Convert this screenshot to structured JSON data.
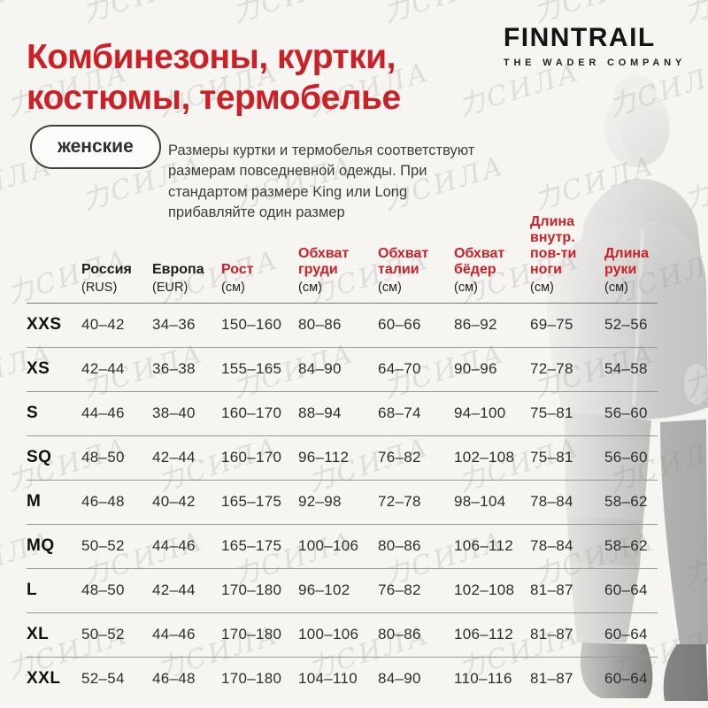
{
  "header": {
    "title_line1": "Комбинезоны, куртки,",
    "title_line2": "костюмы, термобелье",
    "badge_label": "женские",
    "note": "Размеры куртки и термобелья соответствуют размерам повседневной одежды. При стандартом размере King или Long прибавляйте один размер"
  },
  "brand": {
    "logo": "FINNTRAIL",
    "tagline": "THE WADER COMPANY"
  },
  "watermark": {
    "text": "力СИЛА"
  },
  "colors": {
    "accent_red": "#cb2026",
    "text_dark": "#1c1c1c",
    "separator_gray": "#979797",
    "watermark_gray": "#87837b",
    "background": "#f6f5f2"
  },
  "table": {
    "columns": [
      {
        "label": "",
        "unit": "",
        "red": false
      },
      {
        "label": "Россия",
        "unit": "(RUS)",
        "red": false
      },
      {
        "label": "Европа",
        "unit": "(EUR)",
        "red": false
      },
      {
        "label": "Рост",
        "unit": "(см)",
        "red": true
      },
      {
        "label": "Обхват груди",
        "unit": "(см)",
        "red": true
      },
      {
        "label": "Обхват талии",
        "unit": "(см)",
        "red": true
      },
      {
        "label": "Обхват бёдер",
        "unit": "(см)",
        "red": true
      },
      {
        "label": "Длина внутр. пов-ти ноги",
        "unit": "(см)",
        "red": true
      },
      {
        "label": "Длина руки",
        "unit": "(см)",
        "red": true
      }
    ],
    "rows": [
      {
        "size": "XXS",
        "values": [
          "40–42",
          "34–36",
          "150–160",
          "80–86",
          "60–66",
          "86–92",
          "69–75",
          "52–56"
        ]
      },
      {
        "size": "XS",
        "values": [
          "42–44",
          "36–38",
          "155–165",
          "84–90",
          "64–70",
          "90–96",
          "72–78",
          "54–58"
        ]
      },
      {
        "size": "S",
        "values": [
          "44–46",
          "38–40",
          "160–170",
          "88–94",
          "68–74",
          "94–100",
          "75–81",
          "56–60"
        ]
      },
      {
        "size": "SQ",
        "values": [
          "48–50",
          "42–44",
          "160–170",
          "96–112",
          "76–82",
          "102–108",
          "75–81",
          "56–60"
        ]
      },
      {
        "size": "M",
        "values": [
          "46–48",
          "40–42",
          "165–175",
          "92–98",
          "72–78",
          "98–104",
          "78–84",
          "58–62"
        ]
      },
      {
        "size": "MQ",
        "values": [
          "50–52",
          "44–46",
          "165–175",
          "100–106",
          "80–86",
          "106–112",
          "78–84",
          "58–62"
        ]
      },
      {
        "size": "L",
        "values": [
          "48–50",
          "42–44",
          "170–180",
          "96–102",
          "76–82",
          "102–108",
          "81–87",
          "60–64"
        ]
      },
      {
        "size": "XL",
        "values": [
          "50–52",
          "44–46",
          "170–180",
          "100–106",
          "80–86",
          "106–112",
          "81–87",
          "60–64"
        ]
      },
      {
        "size": "XXL",
        "values": [
          "52–54",
          "46–48",
          "170–180",
          "104–110",
          "84–90",
          "110–116",
          "81–87",
          "60–64"
        ]
      }
    ]
  }
}
